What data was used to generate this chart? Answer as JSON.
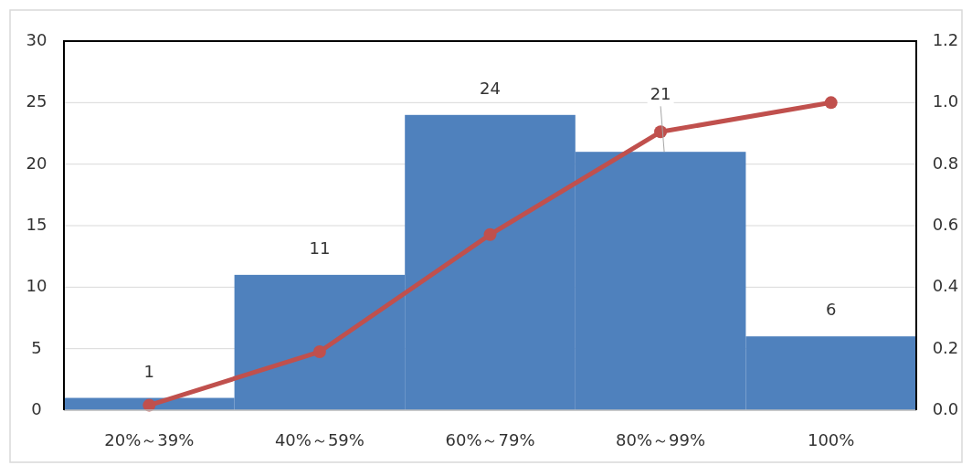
{
  "chart_data": {
    "type": "bar",
    "categories": [
      "20%～39%",
      "40%～59%",
      "60%～79%",
      "80%～99%",
      "100%"
    ],
    "series": [
      {
        "color": "#4f81bd",
        "values": [
          1,
          11,
          24,
          21,
          6
        ],
        "value_labels": [
          "1",
          "11",
          "24",
          "21",
          "6"
        ]
      },
      {
        "type": "line",
        "axis": "y2",
        "color": "#c0504d",
        "values": [
          0.016,
          0.19,
          0.571,
          0.905,
          1.0
        ]
      }
    ],
    "ylim": [
      0,
      30
    ],
    "yticks": [
      0,
      5,
      10,
      15,
      20,
      25,
      30
    ],
    "y2lim": [
      0,
      1.2
    ],
    "y2ticks": [
      {
        "value": 0,
        "label": "0.0"
      },
      0.2,
      0.4,
      0.6,
      0.8,
      {
        "value": 1,
        "label": "1.0"
      },
      1.2
    ],
    "grid": "y",
    "marker": "circle",
    "line_style": "solid"
  }
}
